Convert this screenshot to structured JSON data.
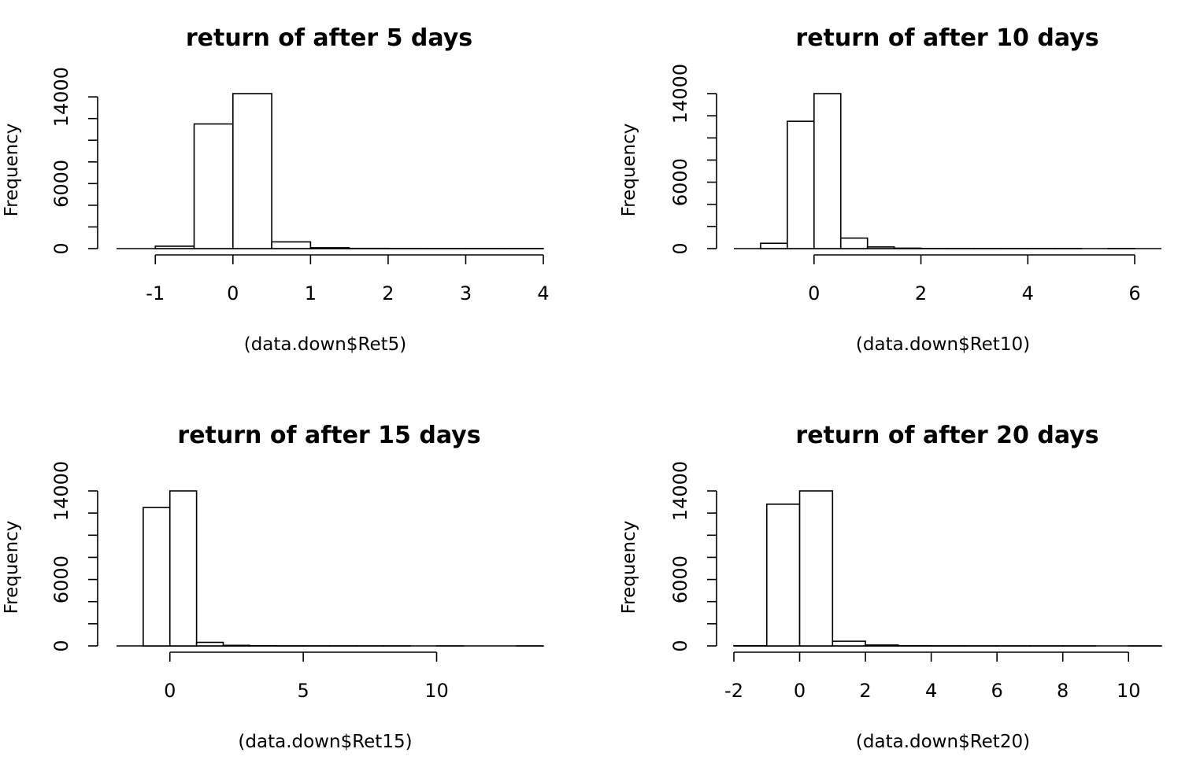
{
  "chart_data": [
    {
      "type": "bar",
      "title": "return of after 5 days",
      "xlabel": "(data.down$Ret5)",
      "ylabel": "Frequency",
      "bin_edges": [
        -1.0,
        -0.5,
        0.0,
        0.5,
        1.0,
        1.5,
        2.0,
        2.5,
        3.0,
        3.5,
        4.0
      ],
      "values": [
        220,
        11500,
        14300,
        620,
        80,
        20,
        8,
        4,
        2,
        1
      ],
      "xlim": [
        -1.5,
        4.0
      ],
      "ylim": [
        0,
        14300
      ],
      "xticks": [
        -1,
        0,
        1,
        2,
        3,
        4
      ],
      "xtick_labels": [
        "-1",
        "0",
        "1",
        "2",
        "3",
        "4"
      ],
      "yticks": [
        0,
        2000,
        4000,
        6000,
        8000,
        10000,
        12000,
        14000
      ],
      "ytick_labels": [
        "0",
        "",
        "",
        "6000",
        "",
        "",
        "",
        "14000"
      ],
      "grid": false
    },
    {
      "type": "bar",
      "title": "return of after 10 days",
      "xlabel": "(data.down$Ret10)",
      "ylabel": "Frequency",
      "bin_edges": [
        -1.0,
        -0.5,
        0.0,
        0.5,
        1.0,
        1.5,
        2.0,
        2.5,
        3.0,
        3.5,
        4.0,
        4.5,
        5.0,
        5.5,
        6.0
      ],
      "values": [
        480,
        11500,
        14000,
        950,
        150,
        40,
        15,
        8,
        4,
        2,
        1,
        1,
        0,
        1
      ],
      "xlim": [
        -1.5,
        6.5
      ],
      "ylim": [
        0,
        14000
      ],
      "xticks": [
        0,
        2,
        4,
        6
      ],
      "xtick_labels": [
        "0",
        "2",
        "4",
        "6"
      ],
      "yticks": [
        0,
        2000,
        4000,
        6000,
        8000,
        10000,
        12000,
        14000
      ],
      "ytick_labels": [
        "0",
        "",
        "",
        "6000",
        "",
        "",
        "",
        "14000"
      ],
      "grid": false
    },
    {
      "type": "bar",
      "title": "return of after 15 days",
      "xlabel": "(data.down$Ret15)",
      "ylabel": "Frequency",
      "bin_edges": [
        -1,
        0,
        1,
        2,
        3,
        4,
        5,
        6,
        7,
        8,
        9,
        10,
        11,
        12,
        13,
        14
      ],
      "values": [
        12500,
        14000,
        320,
        50,
        12,
        5,
        3,
        2,
        1,
        1,
        0,
        1,
        0,
        0,
        1
      ],
      "xlim": [
        -2,
        14
      ],
      "ylim": [
        0,
        14000
      ],
      "xticks": [
        0,
        5,
        10
      ],
      "xtick_labels": [
        "0",
        "5",
        "10"
      ],
      "yticks": [
        0,
        2000,
        4000,
        6000,
        8000,
        10000,
        12000,
        14000
      ],
      "ytick_labels": [
        "0",
        "",
        "",
        "6000",
        "",
        "",
        "",
        "14000"
      ],
      "grid": false
    },
    {
      "type": "bar",
      "title": "return of after 20 days",
      "xlabel": "(data.down$Ret20)",
      "ylabel": "Frequency",
      "bin_edges": [
        -2,
        -1,
        0,
        1,
        2,
        3,
        4,
        5,
        6,
        7,
        8,
        9,
        10,
        11
      ],
      "values": [
        20,
        12800,
        14000,
        420,
        80,
        20,
        8,
        4,
        2,
        1,
        1,
        0,
        1
      ],
      "xlim": [
        -2,
        11
      ],
      "ylim": [
        0,
        14000
      ],
      "xticks": [
        -2,
        0,
        2,
        4,
        6,
        8,
        10
      ],
      "xtick_labels": [
        "-2",
        "0",
        "2",
        "4",
        "6",
        "8",
        "10"
      ],
      "yticks": [
        0,
        2000,
        4000,
        6000,
        8000,
        10000,
        12000,
        14000
      ],
      "ytick_labels": [
        "0",
        "",
        "",
        "6000",
        "",
        "",
        "",
        "14000"
      ],
      "grid": false
    }
  ]
}
